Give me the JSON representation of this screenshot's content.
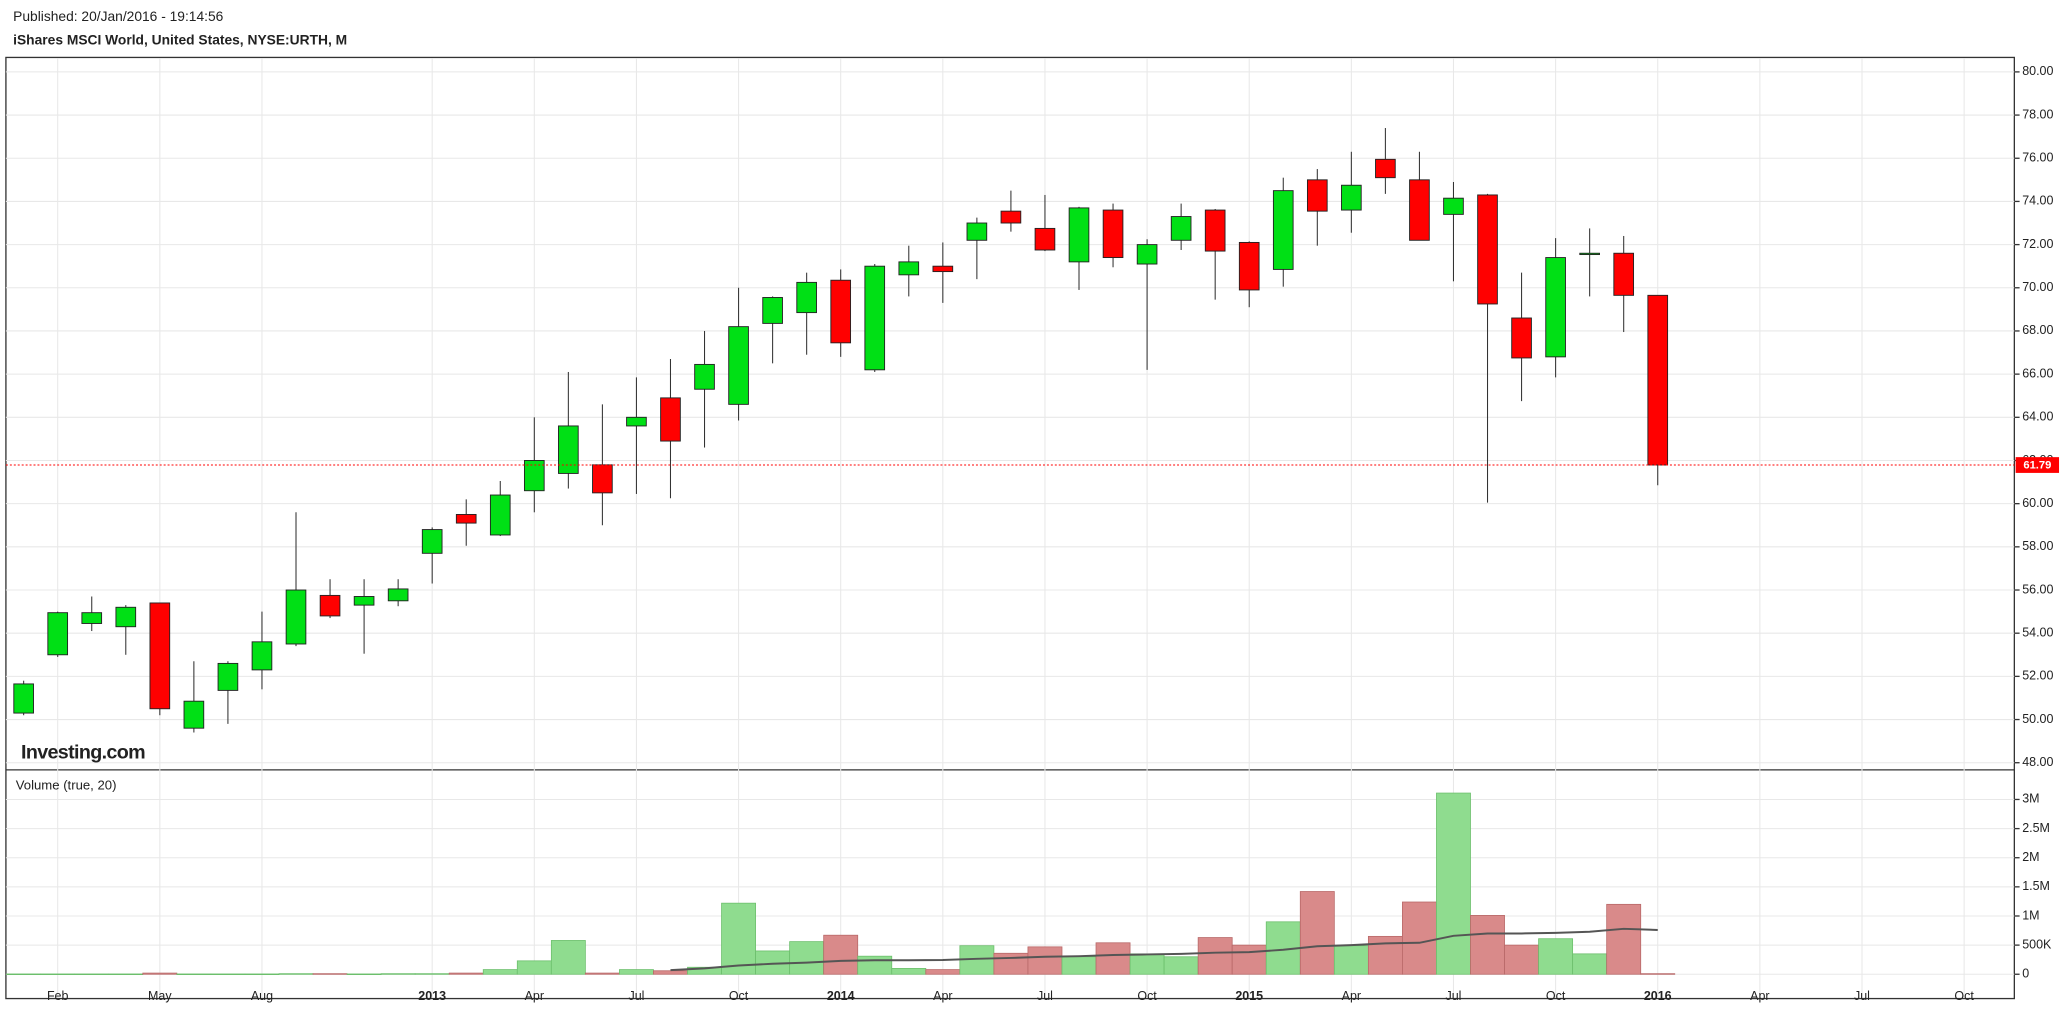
{
  "chart_data": {
    "type": "candlestick",
    "published": "Published: 20/Jan/2016 - 19:14:56",
    "title": "iShares MSCI World, United States, NYSE:URTH, M",
    "watermark": "Investing.com",
    "volume_title": "Volume (true, 20)",
    "categories": [
      null,
      "Feb",
      null,
      null,
      "May",
      null,
      null,
      "Aug",
      null,
      null,
      null,
      null,
      "2013",
      null,
      null,
      "Apr",
      null,
      null,
      "Jul",
      null,
      null,
      "Oct",
      null,
      null,
      "2014",
      null,
      null,
      "Apr",
      null,
      null,
      "Jul",
      null,
      null,
      "Oct",
      null,
      null,
      "2015",
      null,
      null,
      "Apr",
      null,
      null,
      "Jul",
      null,
      null,
      "Oct",
      null,
      null,
      "2016",
      null,
      null,
      "Apr",
      null,
      null,
      "Jul",
      null,
      null,
      "Oct"
    ],
    "open": [
      50.3,
      53.0,
      54.45,
      54.3,
      55.4,
      49.6,
      51.35,
      52.3,
      53.5,
      55.75,
      55.3,
      55.5,
      57.7,
      59.5,
      58.55,
      60.6,
      61.4,
      61.8,
      63.6,
      64.9,
      65.3,
      64.6,
      68.35,
      68.85,
      70.35,
      66.2,
      70.6,
      71.0,
      72.2,
      73.55,
      72.75,
      71.2,
      73.6,
      71.1,
      72.2,
      73.6,
      72.1,
      70.85,
      75.0,
      73.6,
      75.95,
      75.0,
      73.4,
      74.3,
      68.6,
      66.8,
      71.55,
      71.6,
      69.65,
      null,
      null,
      null,
      null,
      null,
      null,
      null,
      null,
      null
    ],
    "high": [
      51.8,
      55.0,
      55.7,
      55.3,
      55.4,
      52.7,
      52.7,
      55.0,
      59.6,
      56.5,
      56.5,
      56.5,
      58.9,
      60.2,
      61.05,
      64.0,
      66.1,
      64.6,
      65.85,
      66.7,
      68.0,
      70.0,
      69.6,
      70.7,
      70.85,
      71.1,
      71.95,
      72.1,
      73.25,
      74.5,
      74.3,
      73.75,
      73.9,
      72.25,
      73.9,
      73.65,
      72.15,
      75.1,
      75.5,
      76.3,
      77.4,
      76.3,
      74.9,
      74.35,
      70.7,
      72.3,
      72.75,
      72.4,
      69.65,
      null,
      null,
      null,
      null,
      null,
      null,
      null,
      null,
      null
    ],
    "low": [
      50.2,
      52.9,
      54.1,
      53.0,
      50.2,
      49.4,
      49.8,
      51.4,
      53.4,
      54.7,
      53.05,
      55.25,
      56.3,
      58.05,
      58.5,
      59.6,
      60.7,
      59.0,
      60.45,
      60.25,
      62.6,
      63.85,
      66.5,
      66.9,
      66.8,
      66.1,
      69.6,
      69.3,
      70.4,
      72.6,
      71.7,
      69.9,
      70.95,
      66.2,
      71.75,
      69.45,
      69.1,
      70.05,
      71.95,
      72.55,
      74.35,
      72.2,
      70.3,
      60.05,
      64.75,
      65.85,
      69.6,
      67.95,
      60.85,
      null,
      null,
      null,
      null,
      null,
      null,
      null,
      null,
      null
    ],
    "close": [
      51.65,
      54.95,
      54.95,
      55.2,
      50.5,
      50.85,
      52.6,
      53.6,
      56.0,
      54.8,
      55.7,
      56.05,
      58.8,
      59.1,
      60.4,
      62.0,
      63.6,
      60.5,
      64.0,
      62.9,
      66.45,
      68.2,
      69.55,
      70.25,
      67.45,
      71.0,
      71.2,
      70.75,
      73.0,
      73.0,
      71.75,
      73.7,
      71.4,
      72.0,
      73.3,
      71.7,
      69.9,
      74.5,
      73.55,
      74.75,
      75.1,
      72.2,
      74.15,
      69.25,
      66.75,
      71.4,
      71.6,
      69.65,
      61.79,
      null,
      null,
      null,
      null,
      null,
      null,
      null,
      null,
      null
    ],
    "volume": [
      5000,
      5000,
      5000,
      5000,
      20000,
      5000,
      5000,
      5000,
      10000,
      10000,
      5000,
      10000,
      10000,
      20000,
      80000,
      230000,
      580000,
      20000,
      80000,
      60000,
      120000,
      1220000,
      400000,
      560000,
      670000,
      310000,
      100000,
      80000,
      490000,
      360000,
      470000,
      300000,
      540000,
      350000,
      300000,
      630000,
      500000,
      900000,
      1420000,
      490000,
      650000,
      1240000,
      3110000,
      1010000,
      500000,
      610000,
      350000,
      1200000,
      10000,
      null,
      null,
      null,
      null,
      null,
      null,
      null,
      null,
      null
    ],
    "volume_ma": [
      null,
      null,
      null,
      null,
      null,
      null,
      null,
      null,
      null,
      null,
      null,
      null,
      null,
      null,
      null,
      null,
      null,
      null,
      null,
      70000,
      100000,
      150000,
      180000,
      200000,
      230000,
      240000,
      240000,
      245000,
      265000,
      280000,
      300000,
      310000,
      330000,
      340000,
      350000,
      370000,
      380000,
      420000,
      480000,
      500000,
      530000,
      540000,
      660000,
      700000,
      700000,
      710000,
      730000,
      780000,
      760000,
      null,
      null,
      null,
      null,
      null,
      null,
      null,
      null,
      null
    ],
    "up_color": "#00e015",
    "down_color": "#ff0000",
    "volume_up_color": "#8fdc8f",
    "volume_down_color": "#d98a8a",
    "ma_color": "#555555",
    "last_price": 61.79,
    "ylim": [
      47.7,
      80.7
    ],
    "yticks": [
      {
        "value": 48,
        "label": "48.00"
      },
      {
        "value": 50,
        "label": "50.00"
      },
      {
        "value": 52,
        "label": "52.00"
      },
      {
        "value": 54,
        "label": "54.00"
      },
      {
        "value": 56,
        "label": "56.00"
      },
      {
        "value": 58,
        "label": "58.00"
      },
      {
        "value": 60,
        "label": "60.00"
      },
      {
        "value": 62,
        "label": "62.00"
      },
      {
        "value": 64,
        "label": "64.00"
      },
      {
        "value": 66,
        "label": "66.00"
      },
      {
        "value": 68,
        "label": "68.00"
      },
      {
        "value": 70,
        "label": "70.00"
      },
      {
        "value": 72,
        "label": "72.00"
      },
      {
        "value": 74,
        "label": "74.00"
      },
      {
        "value": 76,
        "label": "76.00"
      },
      {
        "value": 78,
        "label": "78.00"
      },
      {
        "value": 80,
        "label": "80.00"
      }
    ],
    "y2lim": [
      0,
      3400000
    ],
    "y2ticks": [
      0,
      {
        "value": 500000,
        "label": "500K"
      },
      {
        "value": 1000000,
        "label": "1M"
      },
      {
        "value": 1500000,
        "label": "1.5M"
      },
      {
        "value": 2000000,
        "label": "2M"
      },
      {
        "value": 2500000,
        "label": "2.5M"
      },
      {
        "value": 3000000,
        "label": "3M"
      }
    ],
    "grid": true
  }
}
